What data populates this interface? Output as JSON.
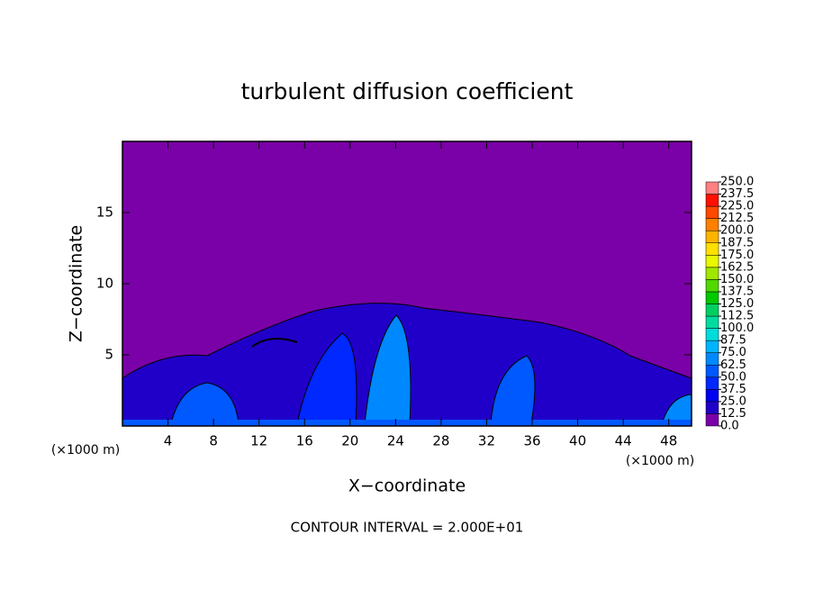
{
  "chart_data": {
    "type": "contour",
    "title": "turbulent diffusion coefficient",
    "xlabel": "X−coordinate",
    "ylabel": "Z−coordinate",
    "x_unit": "(×1000 m)",
    "x_unit_right": "(×1000 m)",
    "footnote": "CONTOUR INTERVAL = 2.000E+01",
    "xlim": [
      0,
      50
    ],
    "xticks": [
      4,
      8,
      12,
      16,
      20,
      24,
      28,
      32,
      36,
      40,
      44,
      48
    ],
    "ylim": [
      0,
      20
    ],
    "yticks": [
      5,
      10,
      15
    ],
    "colorbar": {
      "levels": [
        {
          "value": 0,
          "label": "0.0"
        },
        {
          "value": 12.5,
          "label": "12.5"
        },
        {
          "value": 25,
          "label": "25.0"
        },
        {
          "value": 37.5,
          "label": "37.5"
        },
        {
          "value": 50,
          "label": "50.0"
        },
        {
          "value": 62.5,
          "label": "62.5"
        },
        {
          "value": 75,
          "label": "75.0"
        },
        {
          "value": 87.5,
          "label": "87.5"
        },
        {
          "value": 100,
          "label": "100.0"
        },
        {
          "value": 112.5,
          "label": "112.5"
        },
        {
          "value": 125,
          "label": "125.0"
        },
        {
          "value": 137.5,
          "label": "137.5"
        },
        {
          "value": 150,
          "label": "150.0"
        },
        {
          "value": 162.5,
          "label": "162.5"
        },
        {
          "value": 175,
          "label": "175.0"
        },
        {
          "value": 187.5,
          "label": "187.5"
        },
        {
          "value": 200,
          "label": "200.0"
        },
        {
          "value": 212.5,
          "label": "212.5"
        },
        {
          "value": 225,
          "label": "225.0"
        },
        {
          "value": 237.5,
          "label": "237.5"
        },
        {
          "value": 250,
          "label": "250.0"
        }
      ],
      "colors": [
        "#7a00a8",
        "#2000c8",
        "#0000f0",
        "#0028ff",
        "#0058ff",
        "#0088ff",
        "#00b4ff",
        "#00dcdc",
        "#00dca0",
        "#00d060",
        "#00c800",
        "#50d800",
        "#a0e800",
        "#e8f800",
        "#ffe000",
        "#ffb400",
        "#ff8000",
        "#ff4800",
        "#ff1000",
        "#ff8080"
      ]
    }
  }
}
